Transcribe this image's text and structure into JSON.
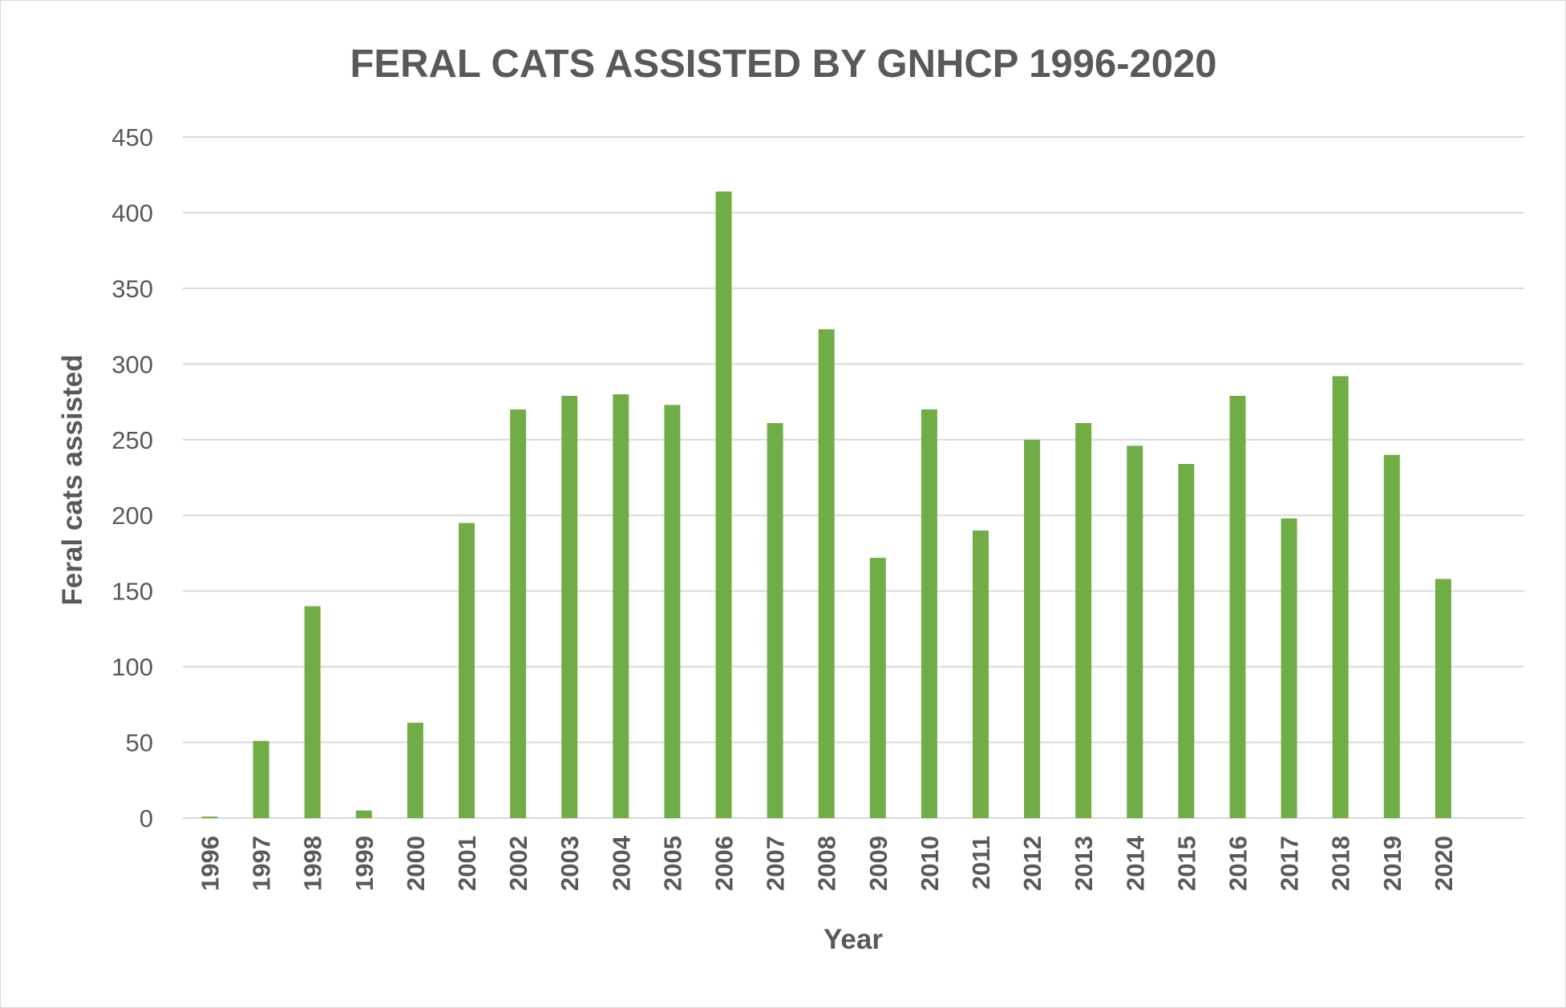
{
  "chart_data": {
    "type": "bar",
    "title": "FERAL CATS ASSISTED BY GNHCP 1996-2020",
    "xlabel": "Year",
    "ylabel": "Feral cats assisted",
    "categories": [
      "1996",
      "1997",
      "1998",
      "1999",
      "2000",
      "2001",
      "2002",
      "2003",
      "2004",
      "2005",
      "2006",
      "2007",
      "2008",
      "2009",
      "2010",
      "2011",
      "2012",
      "2013",
      "2014",
      "2015",
      "2016",
      "2017",
      "2018",
      "2019",
      "2020"
    ],
    "values": [
      1,
      51,
      140,
      5,
      63,
      195,
      270,
      279,
      280,
      273,
      414,
      261,
      323,
      172,
      270,
      190,
      250,
      261,
      246,
      234,
      279,
      198,
      292,
      240,
      158
    ],
    "ylim": [
      0,
      450
    ],
    "yticks": [
      0,
      50,
      100,
      150,
      200,
      250,
      300,
      350,
      400,
      450
    ],
    "grid": true,
    "legend": "none",
    "bar_color": "#70ad47"
  }
}
